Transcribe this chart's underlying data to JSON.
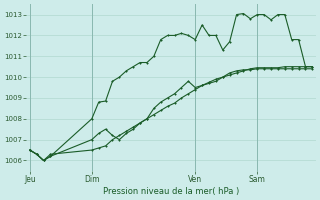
{
  "xlabel": "Pression niveau de la mer( hPa )",
  "bg_color": "#ceecea",
  "grid_color": "#b0d8d0",
  "line_color": "#1a5c28",
  "marker_color": "#1a5c28",
  "ylim": [
    1005.5,
    1013.5
  ],
  "yticks": [
    1006,
    1007,
    1008,
    1009,
    1010,
    1011,
    1012,
    1013
  ],
  "xtick_labels": [
    "Jeu",
    "Dim",
    "Ven",
    "Sam"
  ],
  "xtick_pos": [
    0,
    9,
    24,
    33
  ],
  "vline_pos": [
    0,
    9,
    24,
    33
  ],
  "total_points": 42,
  "series1_x": [
    0,
    1,
    2,
    3,
    9,
    10,
    11,
    12,
    13,
    14,
    15,
    16,
    17,
    18,
    19,
    20,
    21,
    22,
    23,
    24,
    25,
    26,
    27,
    28,
    29,
    30,
    31,
    32,
    33,
    34,
    35,
    36,
    37,
    38,
    39,
    40,
    41
  ],
  "series1_y": [
    1006.5,
    1006.3,
    1006.0,
    1006.2,
    1008.0,
    1008.8,
    1008.85,
    1009.8,
    1010.0,
    1010.3,
    1010.5,
    1010.7,
    1010.7,
    1011.0,
    1011.8,
    1012.0,
    1012.0,
    1012.1,
    1012.0,
    1011.8,
    1012.5,
    1012.0,
    1012.0,
    1011.3,
    1011.7,
    1013.0,
    1013.05,
    1012.8,
    1013.0,
    1013.0,
    1012.75,
    1013.0,
    1013.0,
    1011.8,
    1011.8,
    1010.5,
    1010.5
  ],
  "series2_x": [
    0,
    1,
    2,
    3,
    9,
    10,
    11,
    12,
    13,
    14,
    15,
    16,
    17,
    18,
    19,
    20,
    21,
    22,
    23,
    24,
    25,
    26,
    27,
    28,
    29,
    30,
    31,
    32,
    33,
    34,
    35,
    36,
    37,
    38,
    39,
    40,
    41
  ],
  "series2_y": [
    1006.5,
    1006.3,
    1006.0,
    1006.3,
    1006.5,
    1006.6,
    1006.7,
    1007.0,
    1007.2,
    1007.4,
    1007.6,
    1007.8,
    1008.0,
    1008.2,
    1008.4,
    1008.6,
    1008.75,
    1009.0,
    1009.2,
    1009.4,
    1009.6,
    1009.75,
    1009.9,
    1010.0,
    1010.1,
    1010.2,
    1010.3,
    1010.4,
    1010.45,
    1010.45,
    1010.45,
    1010.45,
    1010.5,
    1010.5,
    1010.5,
    1010.5,
    1010.5
  ],
  "series3_x": [
    0,
    1,
    2,
    3,
    9,
    10,
    11,
    12,
    13,
    14,
    15,
    16,
    17,
    18,
    19,
    20,
    21,
    22,
    23,
    24,
    25,
    26,
    27,
    28,
    29,
    30,
    31,
    32,
    33,
    34,
    35,
    36,
    37,
    38,
    39,
    40,
    41
  ],
  "series3_y": [
    1006.5,
    1006.3,
    1006.0,
    1006.2,
    1007.0,
    1007.3,
    1007.5,
    1007.2,
    1007.0,
    1007.3,
    1007.5,
    1007.8,
    1008.0,
    1008.5,
    1008.8,
    1009.0,
    1009.2,
    1009.5,
    1009.8,
    1009.5,
    1009.6,
    1009.7,
    1009.8,
    1010.0,
    1010.2,
    1010.3,
    1010.35,
    1010.35,
    1010.4,
    1010.4,
    1010.4,
    1010.4,
    1010.4,
    1010.4,
    1010.4,
    1010.4,
    1010.4
  ]
}
